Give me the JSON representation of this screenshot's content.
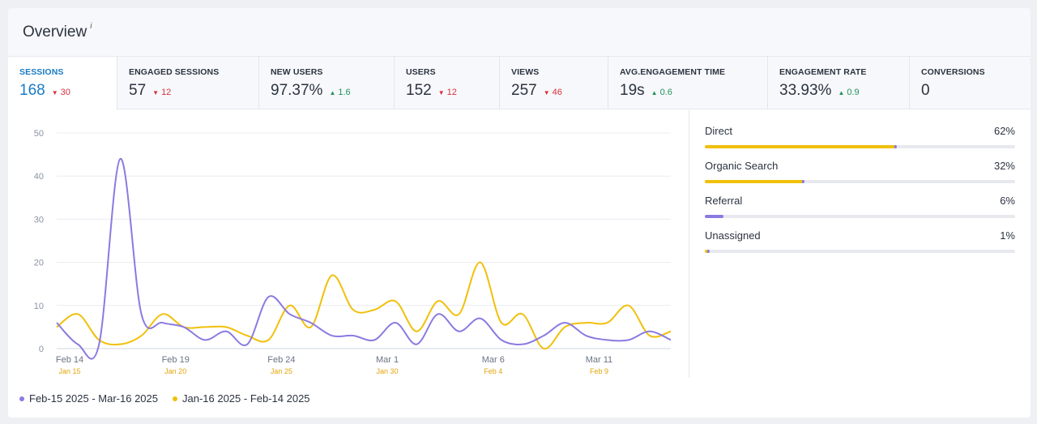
{
  "header": {
    "title": "Overview",
    "info_icon": "i"
  },
  "metrics": [
    {
      "label": "SESSIONS",
      "value": "168",
      "delta": "30",
      "direction": "down"
    },
    {
      "label": "ENGAGED SESSIONS",
      "value": "57",
      "delta": "12",
      "direction": "down"
    },
    {
      "label": "NEW USERS",
      "value": "97.37%",
      "delta": "1.6",
      "direction": "up"
    },
    {
      "label": "USERS",
      "value": "152",
      "delta": "12",
      "direction": "down"
    },
    {
      "label": "VIEWS",
      "value": "257",
      "delta": "46",
      "direction": "down"
    },
    {
      "label": "AVG.ENGAGEMENT TIME",
      "value": "19s",
      "delta": "0.6",
      "direction": "up"
    },
    {
      "label": "ENGAGEMENT RATE",
      "value": "33.93%",
      "delta": "0.9",
      "direction": "up"
    },
    {
      "label": "CONVERSIONS",
      "value": "0",
      "delta": "",
      "direction": ""
    }
  ],
  "sources": [
    {
      "name": "Direct",
      "percent": "62%",
      "value": 62,
      "color": "#f0c00b",
      "tip": "#8b7ae0"
    },
    {
      "name": "Organic Search",
      "percent": "32%",
      "value": 32,
      "color": "#f0c00b",
      "tip": "#8b7ae0"
    },
    {
      "name": "Referral",
      "percent": "6%",
      "value": 6,
      "color": "#8b7ae0",
      "tip": "#8b7ae0"
    },
    {
      "name": "Unassigned",
      "percent": "1%",
      "value": 1,
      "color": "#f0c00b",
      "tip": "#8b7ae0"
    }
  ],
  "legend": {
    "current": {
      "label": "Feb-15 2025 - Mar-16 2025",
      "color": "#8b7ae0"
    },
    "previous": {
      "label": "Jan-16 2025 - Feb-14 2025",
      "color": "#f0c00b"
    }
  },
  "chart_data": {
    "type": "line",
    "ylim": [
      0,
      50
    ],
    "yticks": [
      "0",
      "10",
      "20",
      "30",
      "40",
      "50"
    ],
    "xticks": [
      {
        "label": "Feb 14",
        "sub": "Jan 15",
        "index": 0
      },
      {
        "label": "Feb 19",
        "sub": "Jan 20",
        "index": 5
      },
      {
        "label": "Feb 24",
        "sub": "Jan 25",
        "index": 10
      },
      {
        "label": "Mar 1",
        "sub": "Jan 30",
        "index": 15
      },
      {
        "label": "Mar 6",
        "sub": "Feb 4",
        "index": 20
      },
      {
        "label": "Mar 11",
        "sub": "Feb 9",
        "index": 25
      }
    ],
    "series": [
      {
        "name": "Feb-15 2025 - Mar-16 2025",
        "color": "#8b7ae0",
        "values": [
          6,
          1,
          1,
          44,
          8,
          6,
          5,
          2,
          4,
          1,
          12,
          8,
          6,
          3,
          3,
          2,
          6,
          1,
          8,
          4,
          7,
          2,
          1,
          3,
          6,
          3,
          2,
          2,
          4,
          2
        ]
      },
      {
        "name": "Jan-16 2025 - Feb-14 2025",
        "color": "#f0c00b",
        "values": [
          5,
          8,
          2,
          1,
          3,
          8,
          5,
          5,
          5,
          3,
          2,
          10,
          5,
          17,
          9,
          9,
          11,
          4,
          11,
          8,
          20,
          6,
          8,
          0,
          5,
          6,
          6,
          10,
          3,
          4
        ]
      }
    ]
  }
}
